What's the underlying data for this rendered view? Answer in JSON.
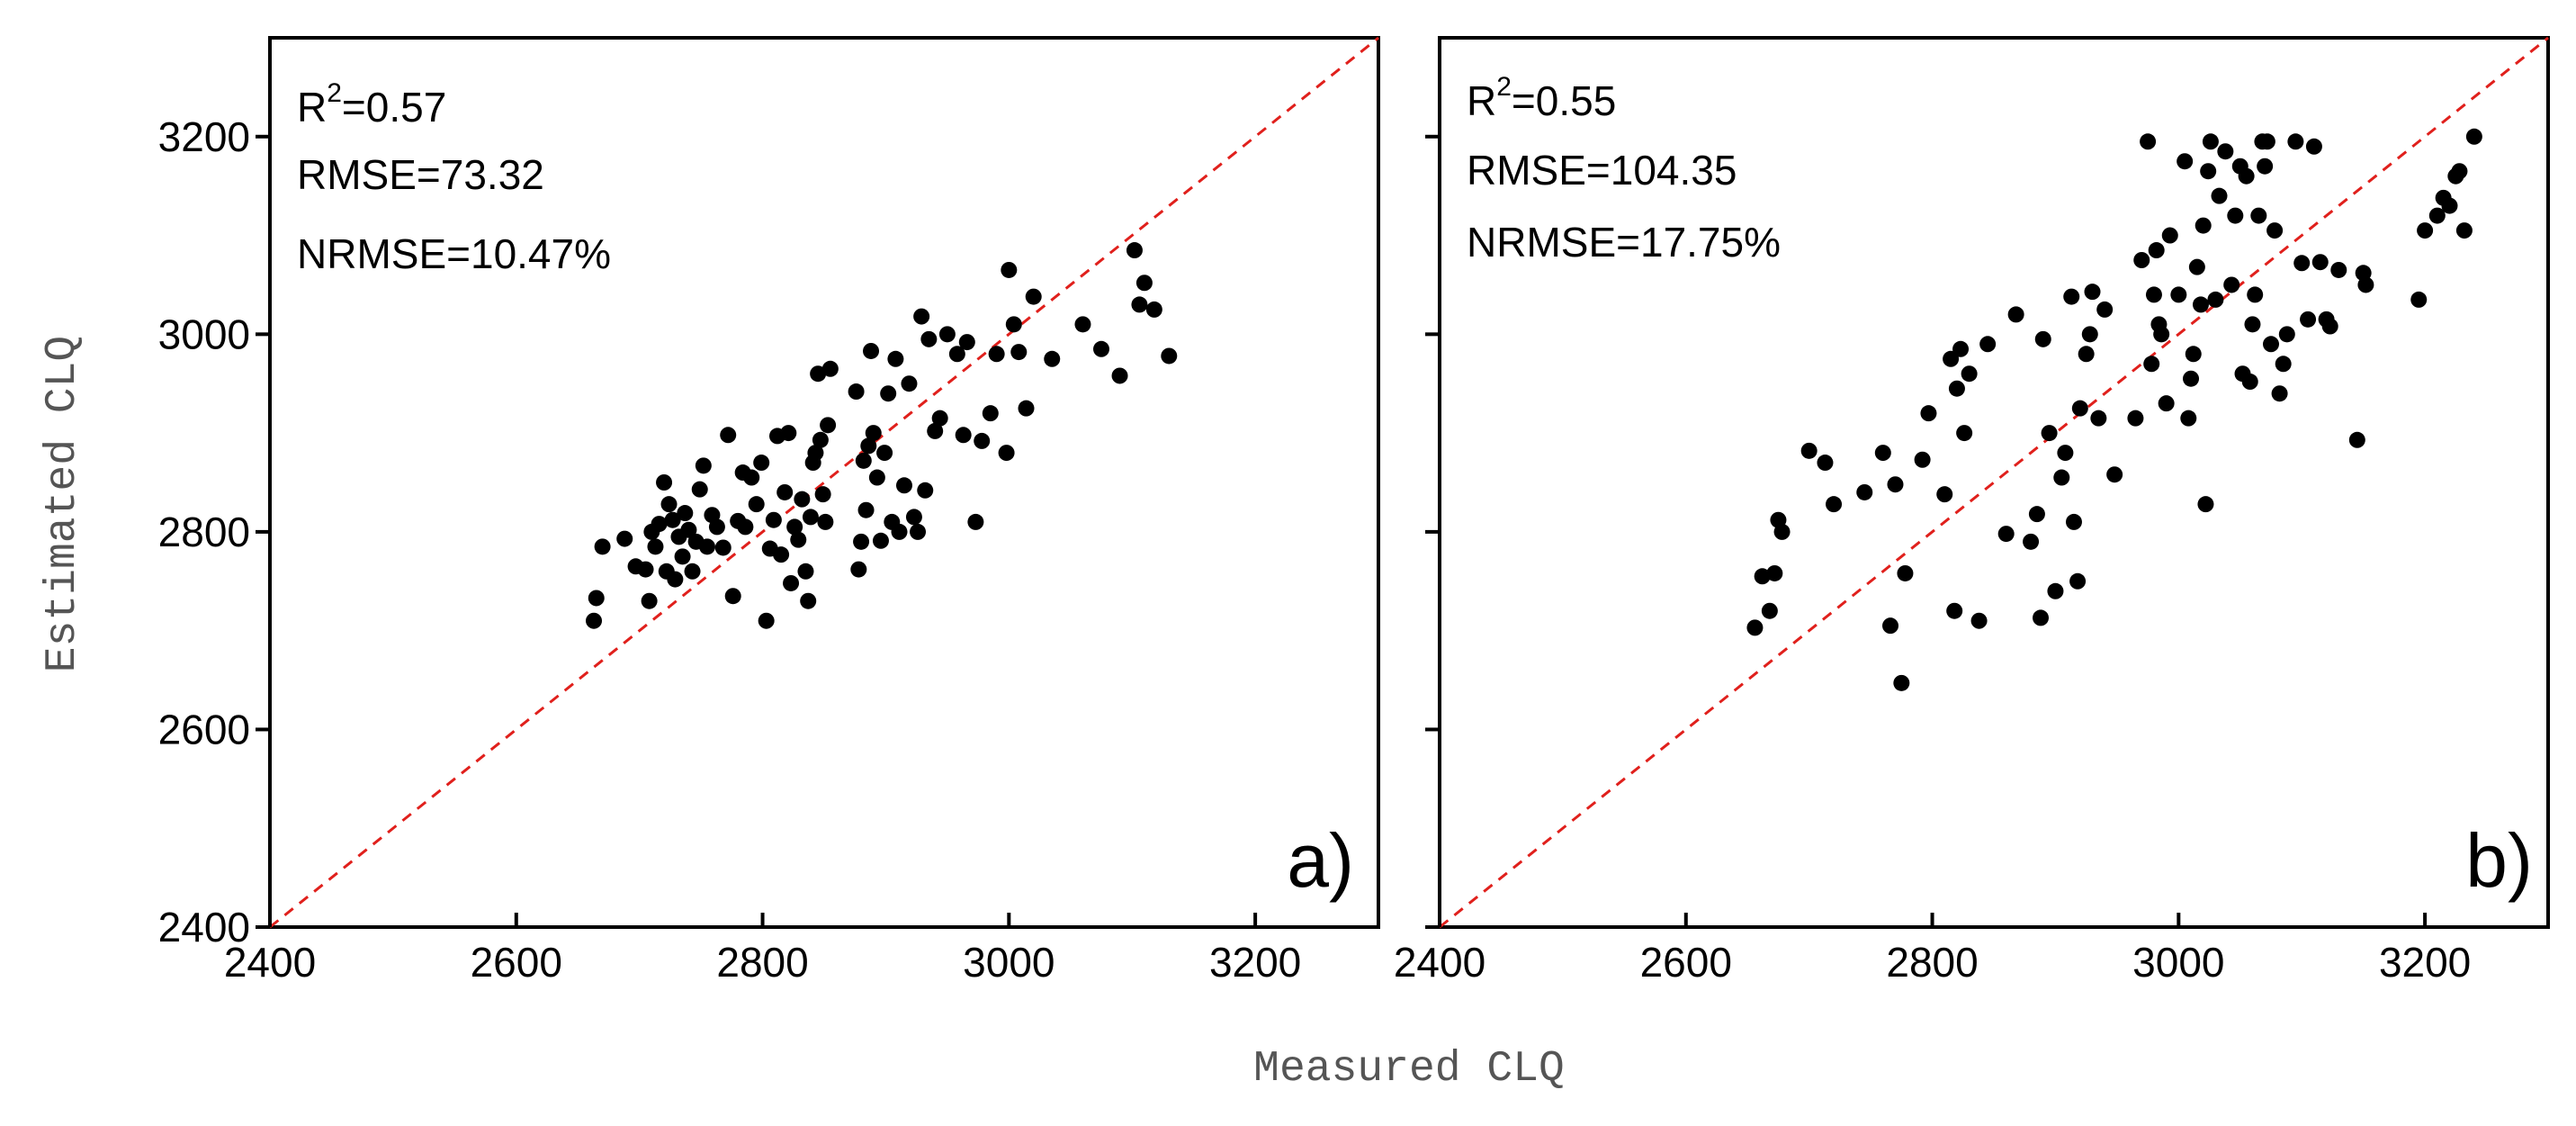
{
  "xlabel": "Measured CLQ",
  "ylabel": "Estimated CLQ",
  "chart_data": [
    {
      "type": "scatter",
      "panel_label": "a)",
      "xlim": [
        2400,
        3300
      ],
      "ylim": [
        2400,
        3300
      ],
      "xticks": [
        "2400",
        "2600",
        "2800",
        "3000",
        "3200"
      ],
      "yticks": [
        "2400",
        "2600",
        "2800",
        "3000",
        "3200"
      ],
      "one_to_one_line": true,
      "stats": {
        "r2_label": "R",
        "r2_sup": "2",
        "r2_value": "=0.57",
        "rmse": "RMSE=73.32",
        "nrmse": "NRMSE=10.47%"
      },
      "points": [
        [
          2663,
          2710
        ],
        [
          2665,
          2733
        ],
        [
          2670,
          2785
        ],
        [
          2688,
          2793
        ],
        [
          2697,
          2765
        ],
        [
          2705,
          2762
        ],
        [
          2708,
          2730
        ],
        [
          2710,
          2800
        ],
        [
          2713,
          2785
        ],
        [
          2716,
          2808
        ],
        [
          2720,
          2850
        ],
        [
          2722,
          2760
        ],
        [
          2724,
          2828
        ],
        [
          2727,
          2812
        ],
        [
          2729,
          2752
        ],
        [
          2732,
          2795
        ],
        [
          2735,
          2775
        ],
        [
          2737,
          2819
        ],
        [
          2740,
          2802
        ],
        [
          2743,
          2760
        ],
        [
          2746,
          2790
        ],
        [
          2749,
          2843
        ],
        [
          2752,
          2867
        ],
        [
          2755,
          2785
        ],
        [
          2759,
          2817
        ],
        [
          2763,
          2805
        ],
        [
          2768,
          2784
        ],
        [
          2772,
          2898
        ],
        [
          2776,
          2735
        ],
        [
          2780,
          2811
        ],
        [
          2784,
          2860
        ],
        [
          2786,
          2805
        ],
        [
          2791,
          2855
        ],
        [
          2795,
          2828
        ],
        [
          2799,
          2870
        ],
        [
          2803,
          2710
        ],
        [
          2806,
          2783
        ],
        [
          2809,
          2812
        ],
        [
          2812,
          2897
        ],
        [
          2815,
          2777
        ],
        [
          2818,
          2840
        ],
        [
          2821,
          2900
        ],
        [
          2823,
          2748
        ],
        [
          2826,
          2805
        ],
        [
          2829,
          2792
        ],
        [
          2832,
          2833
        ],
        [
          2835,
          2760
        ],
        [
          2837,
          2730
        ],
        [
          2839,
          2815
        ],
        [
          2841,
          2870
        ],
        [
          2843,
          2880
        ],
        [
          2845,
          2960
        ],
        [
          2847,
          2893
        ],
        [
          2849,
          2838
        ],
        [
          2851,
          2810
        ],
        [
          2853,
          2908
        ],
        [
          2855,
          2965
        ],
        [
          2876,
          2942
        ],
        [
          2878,
          2762
        ],
        [
          2880,
          2790
        ],
        [
          2882,
          2872
        ],
        [
          2884,
          2822
        ],
        [
          2886,
          2887
        ],
        [
          2888,
          2983
        ],
        [
          2890,
          2900
        ],
        [
          2893,
          2855
        ],
        [
          2896,
          2791
        ],
        [
          2899,
          2880
        ],
        [
          2902,
          2940
        ],
        [
          2905,
          2810
        ],
        [
          2908,
          2975
        ],
        [
          2911,
          2800
        ],
        [
          2915,
          2847
        ],
        [
          2919,
          2950
        ],
        [
          2923,
          2815
        ],
        [
          2926,
          2800
        ],
        [
          2929,
          3018
        ],
        [
          2932,
          2842
        ],
        [
          2935,
          2995
        ],
        [
          2940,
          2902
        ],
        [
          2944,
          2915
        ],
        [
          2950,
          3000
        ],
        [
          2958,
          2980
        ],
        [
          2963,
          2898
        ],
        [
          2966,
          2992
        ],
        [
          2973,
          2810
        ],
        [
          2978,
          2892
        ],
        [
          2985,
          2920
        ],
        [
          2990,
          2980
        ],
        [
          2998,
          2880
        ],
        [
          3000,
          3065
        ],
        [
          3004,
          3010
        ],
        [
          3008,
          2982
        ],
        [
          3014,
          2925
        ],
        [
          3020,
          3038
        ],
        [
          3035,
          2975
        ],
        [
          3060,
          3010
        ],
        [
          3075,
          2985
        ],
        [
          3090,
          2958
        ],
        [
          3102,
          3085
        ],
        [
          3106,
          3030
        ],
        [
          3110,
          3052
        ],
        [
          3118,
          3025
        ],
        [
          3130,
          2978
        ]
      ]
    },
    {
      "type": "scatter",
      "panel_label": "b)",
      "xlim": [
        2400,
        3300
      ],
      "ylim": [
        2400,
        3300
      ],
      "xticks": [
        "2400",
        "2600",
        "2800",
        "3000",
        "3200"
      ],
      "yticks": [
        "2400",
        "2600",
        "2800",
        "3000",
        "3200"
      ],
      "one_to_one_line": true,
      "stats": {
        "r2_label": "R",
        "r2_sup": "2",
        "r2_value": "=0.55",
        "rmse": "RMSE=104.35",
        "nrmse": "NRMSE=17.75%"
      },
      "points": [
        [
          2656,
          2703
        ],
        [
          2662,
          2755
        ],
        [
          2668,
          2720
        ],
        [
          2672,
          2758
        ],
        [
          2675,
          2812
        ],
        [
          2678,
          2800
        ],
        [
          2700,
          2882
        ],
        [
          2713,
          2870
        ],
        [
          2720,
          2828
        ],
        [
          2745,
          2840
        ],
        [
          2760,
          2880
        ],
        [
          2766,
          2705
        ],
        [
          2770,
          2848
        ],
        [
          2775,
          2647
        ],
        [
          2778,
          2758
        ],
        [
          2792,
          2873
        ],
        [
          2797,
          2920
        ],
        [
          2810,
          2838
        ],
        [
          2815,
          2975
        ],
        [
          2818,
          2720
        ],
        [
          2820,
          2945
        ],
        [
          2823,
          2985
        ],
        [
          2826,
          2900
        ],
        [
          2830,
          2960
        ],
        [
          2838,
          2710
        ],
        [
          2845,
          2990
        ],
        [
          2860,
          2798
        ],
        [
          2868,
          3020
        ],
        [
          2880,
          2790
        ],
        [
          2885,
          2818
        ],
        [
          2888,
          2713
        ],
        [
          2890,
          2995
        ],
        [
          2895,
          2900
        ],
        [
          2900,
          2740
        ],
        [
          2905,
          2855
        ],
        [
          2908,
          2880
        ],
        [
          2913,
          3038
        ],
        [
          2915,
          2810
        ],
        [
          2918,
          2750
        ],
        [
          2920,
          2925
        ],
        [
          2925,
          2980
        ],
        [
          2928,
          3000
        ],
        [
          2930,
          3043
        ],
        [
          2935,
          2915
        ],
        [
          2940,
          3025
        ],
        [
          2948,
          2858
        ],
        [
          2965,
          2915
        ],
        [
          2970,
          3075
        ],
        [
          2975,
          3195
        ],
        [
          2978,
          2970
        ],
        [
          2980,
          3040
        ],
        [
          2982,
          3085
        ],
        [
          2984,
          3010
        ],
        [
          2986,
          3000
        ],
        [
          2990,
          2930
        ],
        [
          2993,
          3100
        ],
        [
          3000,
          3040
        ],
        [
          3005,
          3175
        ],
        [
          3008,
          2915
        ],
        [
          3010,
          2955
        ],
        [
          3012,
          2980
        ],
        [
          3015,
          3068
        ],
        [
          3018,
          3030
        ],
        [
          3020,
          3110
        ],
        [
          3022,
          2828
        ],
        [
          3024,
          3165
        ],
        [
          3026,
          3195
        ],
        [
          3030,
          3035
        ],
        [
          3033,
          3140
        ],
        [
          3038,
          3185
        ],
        [
          3043,
          3050
        ],
        [
          3046,
          3120
        ],
        [
          3050,
          3170
        ],
        [
          3052,
          2960
        ],
        [
          3055,
          3160
        ],
        [
          3058,
          2952
        ],
        [
          3060,
          3010
        ],
        [
          3062,
          3040
        ],
        [
          3065,
          3120
        ],
        [
          3068,
          3195
        ],
        [
          3070,
          3170
        ],
        [
          3072,
          3195
        ],
        [
          3075,
          2990
        ],
        [
          3078,
          3105
        ],
        [
          3082,
          2940
        ],
        [
          3085,
          2970
        ],
        [
          3088,
          3000
        ],
        [
          3095,
          3195
        ],
        [
          3100,
          3072
        ],
        [
          3105,
          3015
        ],
        [
          3110,
          3190
        ],
        [
          3115,
          3073
        ],
        [
          3120,
          3015
        ],
        [
          3123,
          3008
        ],
        [
          3130,
          3065
        ],
        [
          3145,
          2893
        ],
        [
          3150,
          3062
        ],
        [
          3152,
          3050
        ],
        [
          3195,
          3035
        ],
        [
          3200,
          3105
        ],
        [
          3210,
          3120
        ],
        [
          3215,
          3138
        ],
        [
          3220,
          3130
        ],
        [
          3225,
          3160
        ],
        [
          3228,
          3165
        ],
        [
          3232,
          3105
        ],
        [
          3240,
          3200
        ]
      ]
    }
  ]
}
